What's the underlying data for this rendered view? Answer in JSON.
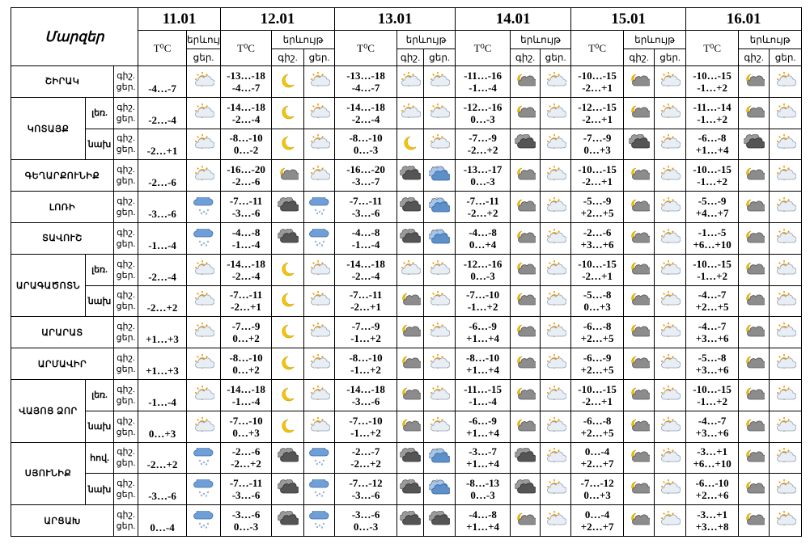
{
  "header": {
    "title": "Մարզեր",
    "dates": [
      "11.01",
      "12.01",
      "13.01",
      "14.01",
      "15.01",
      "16.01"
    ],
    "temp_label": "T⁰C",
    "phenomenon_label": "երևույթ",
    "night_label": "գիշ.",
    "day_label": "ցեր."
  },
  "regions": [
    {
      "name": "ՇԻՐԱԿ",
      "rows": [
        {
          "first": "-4…-7",
          "next": [
            [
              "-13…-18",
              "-4…-7"
            ],
            [
              "-13…-18",
              "-4…-7"
            ],
            [
              "-11…-16",
              "-1…-4"
            ],
            [
              "-10…-15",
              "-2…+1"
            ],
            [
              "-10…-15",
              "-1…+2"
            ]
          ]
        }
      ]
    },
    {
      "name": "ԿՈՏԱՅՔ",
      "rows": [
        {
          "zone": "լեռ.",
          "first": "-2…-4",
          "next": [
            [
              "-14…-18",
              "-2…-4"
            ],
            [
              "-14…-18",
              "-2…-4"
            ],
            [
              "-12…-16",
              "0…-3"
            ],
            [
              "-12…-15",
              "-2…+1"
            ],
            [
              "-11…-14",
              "-1…+2"
            ]
          ]
        },
        {
          "zone": "նախ",
          "first": "-2…+1",
          "next": [
            [
              "-8…-10",
              "0…-2"
            ],
            [
              "-8…-10",
              "0…-3"
            ],
            [
              "-7…-9",
              "-2…+2"
            ],
            [
              "-7…-9",
              "0…+3"
            ],
            [
              "-6…-8",
              "+1…+4"
            ]
          ]
        }
      ]
    },
    {
      "name": "ԳԵՂԱՐՔՈՒՆԻՔ",
      "rows": [
        {
          "first": "-2…-6",
          "next": [
            [
              "-16…-20",
              "-2…-6"
            ],
            [
              "-16…-20",
              "-3…-7"
            ],
            [
              "-13…-17",
              "0…-3"
            ],
            [
              "-10…-15",
              "-2…+1"
            ],
            [
              "-10…-15",
              "-1…+2"
            ]
          ]
        }
      ]
    },
    {
      "name": "ԼՈՌԻ",
      "rows": [
        {
          "first": "-3…-6",
          "next": [
            [
              "-7…-11",
              "-3…-6"
            ],
            [
              "-7…-11",
              "-3…-6"
            ],
            [
              "-7…-11",
              "-2…+2"
            ],
            [
              "-5…-9",
              "+2…+5"
            ],
            [
              "-5…-9",
              "+4…+7"
            ]
          ]
        }
      ]
    },
    {
      "name": "ՏԱՎՈՒՇ",
      "rows": [
        {
          "first": "-1…-4",
          "next": [
            [
              "-4…-8",
              "-1…-4"
            ],
            [
              "-4…-8",
              "-1…-4"
            ],
            [
              "-4…-8",
              "0…+4"
            ],
            [
              "-2…-6",
              "+3…+6"
            ],
            [
              "-1…-5",
              "+6…+10"
            ]
          ]
        }
      ]
    },
    {
      "name": "ԱՐԱԳԱԾՈՏՆ",
      "rows": [
        {
          "zone": "լեռ.",
          "first": "-2…-4",
          "next": [
            [
              "-14…-18",
              "-2…-4"
            ],
            [
              "-14…-18",
              "-2…-4"
            ],
            [
              "-12…-16",
              "0…-3"
            ],
            [
              "-10…-15",
              "-2…+1"
            ],
            [
              "-10…-15",
              "-1…+2"
            ]
          ]
        },
        {
          "zone": "նախ",
          "first": "-2…+2",
          "next": [
            [
              "-7…-11",
              "-2…+1"
            ],
            [
              "-7…-11",
              "-2…+1"
            ],
            [
              "-7…-10",
              "-1…+2"
            ],
            [
              "-5…-8",
              "0…+3"
            ],
            [
              "-4…-7",
              "+2…+5"
            ]
          ]
        }
      ]
    },
    {
      "name": "ԱՐԱՐԱՏ",
      "rows": [
        {
          "first": "+1…+3",
          "next": [
            [
              "-7…-9",
              "0…+2"
            ],
            [
              "-7…-9",
              "-1…+2"
            ],
            [
              "-6…-9",
              "+1…+4"
            ],
            [
              "-6…-8",
              "+2…+5"
            ],
            [
              "-4…-7",
              "+3…+6"
            ]
          ]
        }
      ]
    },
    {
      "name": "ԱՐՄԱՎԻՐ",
      "rows": [
        {
          "first": "+1…+3",
          "next": [
            [
              "-8…-10",
              "0…+2"
            ],
            [
              "-8…-10",
              "-1…+2"
            ],
            [
              "-8…-10",
              "+1…+4"
            ],
            [
              "-6…-9",
              "+2…+5"
            ],
            [
              "-5…-8",
              "+3…+6"
            ]
          ]
        }
      ]
    },
    {
      "name": "ՎԱՅՈՑ ՁՈՐ",
      "rows": [
        {
          "zone": "լեռ.",
          "first": "-1…-4",
          "next": [
            [
              "-14…-18",
              "-1…-4"
            ],
            [
              "-14…-18",
              "-3…-6"
            ],
            [
              "-11…-15",
              "-1…-4"
            ],
            [
              "-10…-15",
              "-2…+1"
            ],
            [
              "-10…-15",
              "-1…+2"
            ]
          ]
        },
        {
          "zone": "նախ",
          "first": "0…+3",
          "next": [
            [
              "-7…-10",
              "0…+3"
            ],
            [
              "-7…-10",
              "-1…+2"
            ],
            [
              "-6…-9",
              "+1…+4"
            ],
            [
              "-6…-8",
              "+2…+5"
            ],
            [
              "-4…-7",
              "+3…+6"
            ]
          ]
        }
      ]
    },
    {
      "name": "ՍՅՈՒՆԻՔ",
      "rows": [
        {
          "zone": "հով.",
          "first": "-2…+2",
          "next": [
            [
              "-2…-6",
              "-2…+2"
            ],
            [
              "-2…-7",
              "-2…+2"
            ],
            [
              "-3…-7",
              "+1…+4"
            ],
            [
              "0…-4",
              "+2…+7"
            ],
            [
              "-3…+1",
              "+6…+10"
            ]
          ]
        },
        {
          "zone": "նախ",
          "first": "-3…-6",
          "next": [
            [
              "-7…-11",
              "-3…-6"
            ],
            [
              "-7…-12",
              "-3…-6"
            ],
            [
              "-8…-13",
              "0…-3"
            ],
            [
              "-7…-12",
              "0…+3"
            ],
            [
              "-6…-10",
              "+2…+6"
            ]
          ]
        }
      ]
    },
    {
      "name": "ԱՐՑԱԽ",
      "rows": [
        {
          "first": "0…-4",
          "next": [
            [
              "-3…-6",
              "0…-3"
            ],
            [
              "-3…-6",
              "0…-3"
            ],
            [
              "-4…-8",
              "+1…+4"
            ],
            [
              "0…-4",
              "+2…+7"
            ],
            [
              "-3…+1",
              "+3…+8"
            ]
          ]
        }
      ]
    }
  ]
}
